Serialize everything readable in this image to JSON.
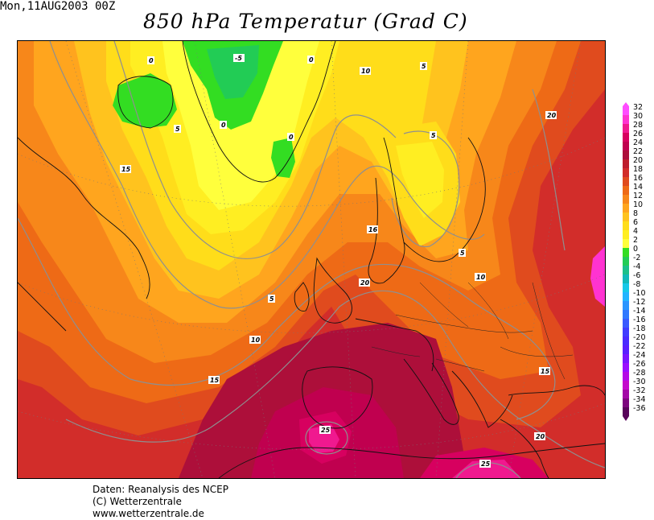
{
  "header": {
    "run_label": "Mon,11AUG2003 00Z",
    "title": "850 hPa Temperatur (Grad C)"
  },
  "footer": {
    "line1": "Daten: Reanalysis des NCEP",
    "line2": "(C) Wetterzentrale",
    "line3": "www.wetterzentrale.de"
  },
  "legend": {
    "levels": [
      {
        "label": "32",
        "color": "#ff4dff"
      },
      {
        "label": "30",
        "color": "#ff33d1"
      },
      {
        "label": "28",
        "color": "#f0198f"
      },
      {
        "label": "26",
        "color": "#d7005f"
      },
      {
        "label": "24",
        "color": "#c0004f"
      },
      {
        "label": "22",
        "color": "#ad0f3a"
      },
      {
        "label": "20",
        "color": "#be1e2d"
      },
      {
        "label": "18",
        "color": "#d22d2a"
      },
      {
        "label": "16",
        "color": "#e04b1e"
      },
      {
        "label": "14",
        "color": "#ee6a16"
      },
      {
        "label": "12",
        "color": "#f7871a"
      },
      {
        "label": "10",
        "color": "#ffa51e"
      },
      {
        "label": "8",
        "color": "#ffc31e"
      },
      {
        "label": "6",
        "color": "#ffdd1a"
      },
      {
        "label": "4",
        "color": "#ffee22"
      },
      {
        "label": "2",
        "color": "#ffff3c"
      },
      {
        "label": "0",
        "color": "#33dd22"
      },
      {
        "label": "-2",
        "color": "#22cc55"
      },
      {
        "label": "-4",
        "color": "#1bc08a"
      },
      {
        "label": "-6",
        "color": "#11b9b9"
      },
      {
        "label": "-8",
        "color": "#16c8e8"
      },
      {
        "label": "-10",
        "color": "#22b4ff"
      },
      {
        "label": "-12",
        "color": "#2a95ff"
      },
      {
        "label": "-14",
        "color": "#3178ff"
      },
      {
        "label": "-16",
        "color": "#3a5aff"
      },
      {
        "label": "-18",
        "color": "#413cff"
      },
      {
        "label": "-20",
        "color": "#4a2aff"
      },
      {
        "label": "-22",
        "color": "#5a1eff"
      },
      {
        "label": "-24",
        "color": "#7a14ff"
      },
      {
        "label": "-26",
        "color": "#9a0eff"
      },
      {
        "label": "-28",
        "color": "#b40ae6"
      },
      {
        "label": "-30",
        "color": "#c40acc"
      },
      {
        "label": "-32",
        "color": "#a308a6"
      },
      {
        "label": "-34",
        "color": "#7d067e"
      },
      {
        "label": "-36",
        "color": "#59045b"
      }
    ]
  },
  "contour_labels": [
    {
      "text": "0"
    },
    {
      "text": "-5"
    },
    {
      "text": "0"
    },
    {
      "text": "0"
    },
    {
      "text": "0"
    },
    {
      "text": "5"
    },
    {
      "text": "10"
    },
    {
      "text": "5"
    },
    {
      "text": "15"
    },
    {
      "text": "20"
    },
    {
      "text": "5"
    },
    {
      "text": "16"
    },
    {
      "text": "5"
    },
    {
      "text": "10"
    },
    {
      "text": "20"
    },
    {
      "text": "5"
    },
    {
      "text": "10"
    },
    {
      "text": "15"
    },
    {
      "text": "15"
    },
    {
      "text": "25"
    },
    {
      "text": "20"
    },
    {
      "text": "25"
    }
  ]
}
